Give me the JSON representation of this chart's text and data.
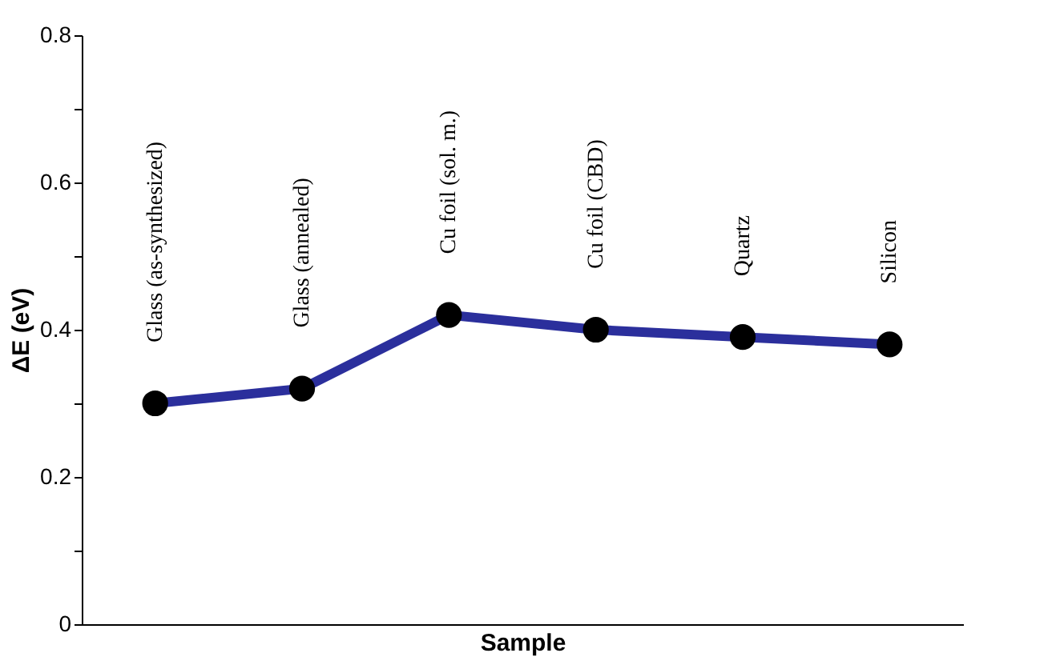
{
  "chart_data": {
    "type": "line",
    "xlabel": "Sample",
    "ylabel": "ΔE (eV)",
    "categories": [
      "Glass (as-synthesized)",
      "Glass (annealed)",
      "Cu foil (sol. m.)",
      "Cu foil (CBD)",
      "Quartz",
      "Silicon"
    ],
    "series": [
      {
        "color": "#2b2f9c",
        "values": [
          0.3,
          0.32,
          0.42,
          0.4,
          0.39,
          0.38
        ]
      }
    ],
    "ylim": [
      0,
      0.8
    ],
    "yticks": [
      0,
      {
        "value": 0.1,
        "label": null
      },
      0.2,
      {
        "value": 0.3,
        "label": null
      },
      0.4,
      {
        "value": 0.5,
        "label": null
      },
      0.6,
      {
        "value": 0.7,
        "label": null
      },
      0.8
    ],
    "marker": "circle",
    "line_style": "solid",
    "grid": false,
    "legend": false,
    "tick_labels": "y"
  }
}
